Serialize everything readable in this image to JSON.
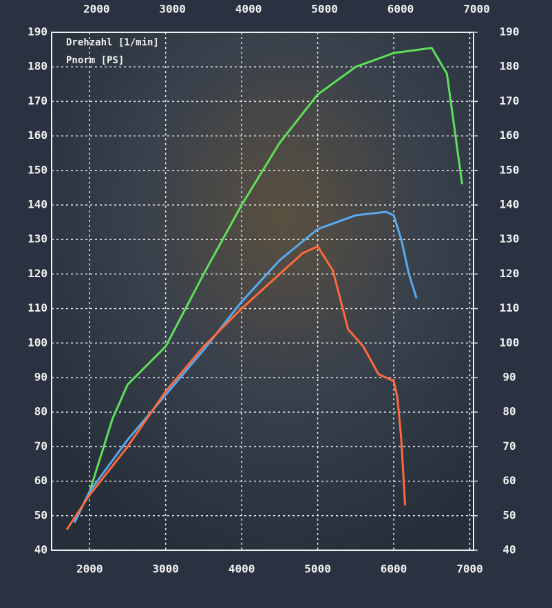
{
  "chart_data": {
    "type": "line",
    "annotations": [
      "Drehzahl [1/min]",
      "Pnorm [PS]"
    ],
    "xlim": [
      1500,
      7050
    ],
    "xticks": [
      2000,
      3000,
      4000,
      5000,
      6000,
      7000
    ],
    "ylim": [
      40,
      190
    ],
    "yticks": [
      40,
      50,
      60,
      70,
      80,
      90,
      100,
      110,
      120,
      130,
      140,
      150,
      160,
      170,
      180,
      190
    ],
    "y2lim": [
      40,
      190
    ],
    "y2ticks": [
      40,
      50,
      60,
      70,
      80,
      90,
      100,
      110,
      120,
      130,
      140,
      150,
      160,
      170,
      180,
      190
    ],
    "grid": true,
    "series": [
      {
        "color": "#5ee05a",
        "x": [
          1800,
          2000,
          2300,
          2500,
          3000,
          3500,
          4000,
          4500,
          5000,
          5500,
          6000,
          6500,
          6700,
          6800,
          6900
        ],
        "values": [
          48,
          57,
          78,
          88,
          99,
          120,
          140,
          158,
          172,
          180,
          184,
          185.5,
          178,
          162,
          146
        ]
      },
      {
        "color": "#5aaaf0",
        "x": [
          1800,
          2000,
          2500,
          3000,
          3500,
          4000,
          4500,
          5000,
          5500,
          5900,
          6000,
          6100,
          6200,
          6300
        ],
        "values": [
          48,
          57,
          72,
          85,
          98,
          112,
          124,
          133,
          137,
          138,
          137,
          130,
          120,
          113
        ]
      },
      {
        "color": "#ff6a3a",
        "x": [
          1700,
          2000,
          2500,
          3000,
          3500,
          4000,
          4500,
          4800,
          5000,
          5200,
          5400,
          5600,
          5800,
          6000,
          6050,
          6100,
          6150
        ],
        "values": [
          46,
          56,
          70,
          86,
          99,
          110,
          120,
          126,
          128,
          121,
          104,
          99,
          91,
          89,
          84,
          72,
          53
        ]
      }
    ]
  }
}
